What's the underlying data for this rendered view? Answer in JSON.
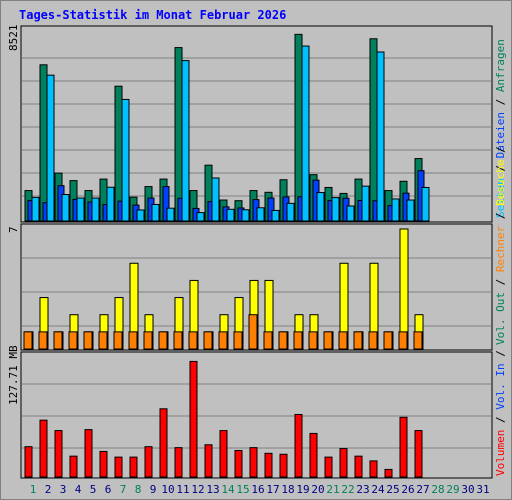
{
  "title": "Tages-Statistik im Monat Februar 2026",
  "colors": {
    "hits": "#00805c",
    "files": "#00c0ff",
    "pages": "#0040ff",
    "visits": "#ffff00",
    "sites": "#ff8000",
    "kbytes": "#ff0000",
    "weekday_label": "#000080",
    "weekend_label": "#00805c",
    "rule": "#808080"
  },
  "chart_data": {
    "type": "bar",
    "categories": [
      "1",
      "2",
      "3",
      "4",
      "5",
      "6",
      "7",
      "8",
      "9",
      "10",
      "11",
      "12",
      "13",
      "14",
      "15",
      "16",
      "17",
      "18",
      "19",
      "20",
      "21",
      "22",
      "23",
      "24",
      "25",
      "26",
      "27",
      "28",
      "29",
      "30",
      "31"
    ],
    "weekend_days": [
      "1",
      "7",
      "8",
      "14",
      "15",
      "21",
      "22",
      "28",
      "29"
    ],
    "inactive_days": [
      "28",
      "29",
      "30",
      "31"
    ],
    "panels": [
      {
        "name": "requests",
        "ymax": 8521,
        "ymax_label": "8521",
        "series": [
          {
            "name": "Anfragen",
            "color": "#00805c",
            "values": [
              1380,
              7080,
              2170,
              1830,
              1380,
              1900,
              6110,
              1080,
              1560,
              1900,
              7860,
              1380,
              2530,
              950,
              920,
              1380,
              1300,
              1870,
              8460,
              2100,
              1520,
              1250,
              1900,
              8260,
              1380,
              1800,
              2830,
              null,
              null,
              null,
              null
            ]
          },
          {
            "name": "Dateien",
            "color": "#00c0ff",
            "values": [
              1070,
              6610,
              1200,
              1040,
              1040,
              1530,
              5510,
              500,
              750,
              580,
              7270,
              380,
              1950,
              530,
              510,
              600,
              480,
              800,
              7930,
              1290,
              1060,
              680,
              1580,
              7660,
              1000,
              950,
              1520,
              null,
              null,
              null,
              null
            ]
          },
          {
            "name": "Seiten",
            "color": "#0040ff",
            "values": [
              930,
              830,
              1600,
              980,
              860,
              750,
              900,
              720,
              1040,
              1560,
              1030,
              570,
              880,
              640,
              590,
              970,
              1040,
              1090,
              1100,
              1850,
              930,
              1030,
              930,
              920,
              700,
              1260,
              2280,
              null,
              null,
              null,
              null
            ]
          }
        ],
        "series_labels_on_axis": [
          "Anfragen",
          "Dateien",
          "Seiten"
        ]
      },
      {
        "name": "visits",
        "ymax": 7,
        "ymax_label": "7",
        "series": [
          {
            "name": "Besuche",
            "color": "#ffff00",
            "values": [
              1,
              3,
              1,
              2,
              1,
              2,
              3,
              5,
              2,
              1,
              3,
              4,
              1,
              2,
              3,
              4,
              4,
              1,
              2,
              2,
              1,
              5,
              1,
              5,
              1,
              7,
              2,
              null,
              null,
              null,
              null
            ]
          },
          {
            "name": "Rechner",
            "color": "#ff8000",
            "values": [
              1,
              1,
              1,
              1,
              1,
              1,
              1,
              1,
              1,
              1,
              1,
              1,
              1,
              1,
              1,
              2,
              1,
              1,
              1,
              1,
              1,
              1,
              1,
              1,
              1,
              1,
              1,
              null,
              null,
              null,
              null
            ]
          }
        ],
        "series_labels_on_axis": [
          "Besuche",
          "Rechner",
          "Vol. Out"
        ]
      },
      {
        "name": "volume",
        "ymax": 127.71,
        "ymax_label": "127.71 MB",
        "series": [
          {
            "name": "Volumen",
            "color": "#ff0000",
            "values": [
              32,
              60,
              49,
              22,
              50,
              27,
              21,
              21,
              32,
              72,
              31,
              122,
              34,
              49,
              28,
              31,
              25,
              24,
              66,
              46,
              21,
              30,
              22,
              17,
              8,
              63,
              49,
              null,
              null,
              null,
              null
            ]
          }
        ],
        "series_labels_on_axis": [
          "Volumen",
          "Vol. In"
        ]
      }
    ]
  }
}
